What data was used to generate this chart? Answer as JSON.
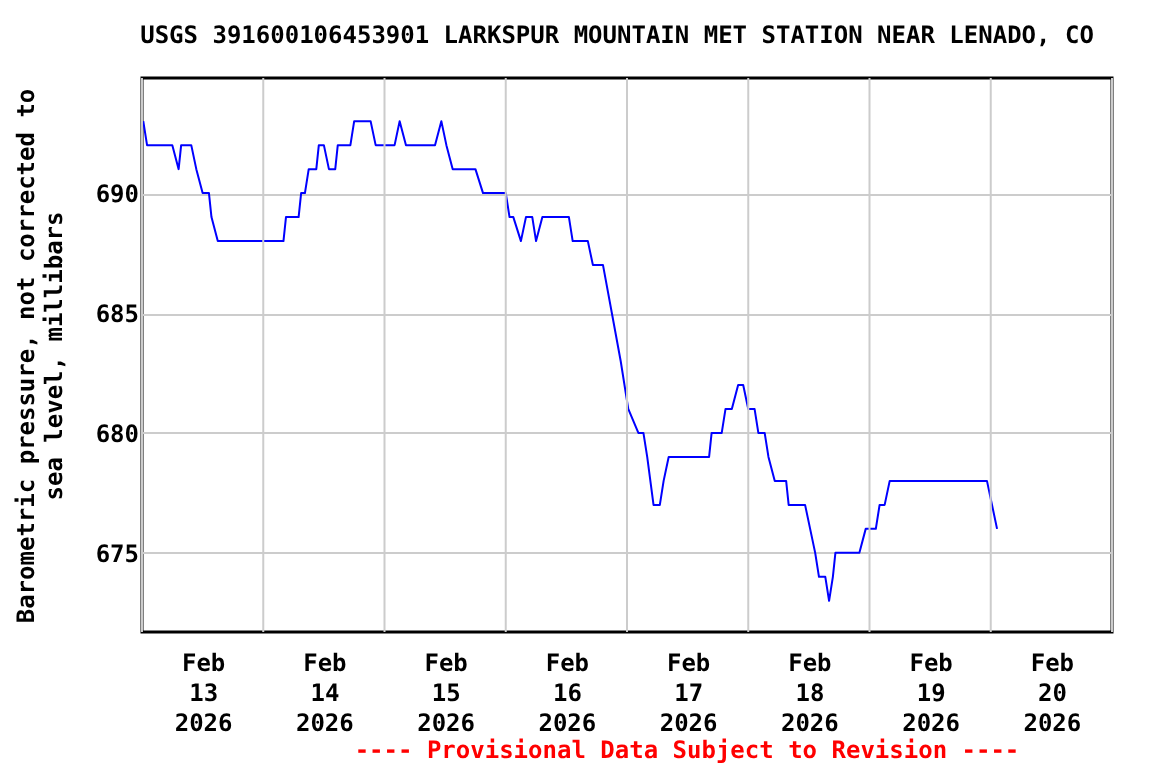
{
  "chart_data": {
    "type": "line",
    "title": "USGS 391600106453901 LARKSPUR MOUNTAIN MET STATION NEAR LENADO, CO",
    "ylabel": "Barometric pressure, not corrected to\nsea level, millibars",
    "annotations": [
      "---- Provisional Data Subject to Revision ----"
    ],
    "x": [
      "2026-02-13T00:15",
      "2026-02-13T01:00",
      "2026-02-13T06:00",
      "2026-02-13T07:15",
      "2026-02-13T07:45",
      "2026-02-13T09:45",
      "2026-02-13T10:45",
      "2026-02-13T12:00",
      "2026-02-13T13:15",
      "2026-02-13T13:45",
      "2026-02-13T15:00",
      "2026-02-14T04:00",
      "2026-02-14T04:30",
      "2026-02-14T07:00",
      "2026-02-14T07:30",
      "2026-02-14T08:15",
      "2026-02-14T09:00",
      "2026-02-14T10:30",
      "2026-02-14T11:00",
      "2026-02-14T12:00",
      "2026-02-14T13:00",
      "2026-02-14T14:15",
      "2026-02-14T14:45",
      "2026-02-14T17:15",
      "2026-02-14T18:00",
      "2026-02-14T21:15",
      "2026-02-14T22:15",
      "2026-02-15T02:00",
      "2026-02-15T03:00",
      "2026-02-15T04:15",
      "2026-02-15T10:00",
      "2026-02-15T11:15",
      "2026-02-15T12:15",
      "2026-02-15T13:30",
      "2026-02-15T18:00",
      "2026-02-15T19:30",
      "2026-02-16T00:00",
      "2026-02-16T00:45",
      "2026-02-16T01:30",
      "2026-02-16T03:00",
      "2026-02-16T04:00",
      "2026-02-16T05:15",
      "2026-02-16T06:00",
      "2026-02-16T07:15",
      "2026-02-16T12:30",
      "2026-02-16T13:15",
      "2026-02-16T16:15",
      "2026-02-16T17:15",
      "2026-02-16T19:15",
      "2026-02-16T21:00",
      "2026-02-16T22:45",
      "2026-02-17T00:15",
      "2026-02-17T02:15",
      "2026-02-17T03:15",
      "2026-02-17T04:00",
      "2026-02-17T05:15",
      "2026-02-17T06:30",
      "2026-02-17T07:15",
      "2026-02-17T08:15",
      "2026-02-17T16:15",
      "2026-02-17T16:45",
      "2026-02-17T18:45",
      "2026-02-17T19:30",
      "2026-02-17T20:45",
      "2026-02-17T22:00",
      "2026-02-17T23:00",
      "2026-02-18T00:00",
      "2026-02-18T01:15",
      "2026-02-18T02:00",
      "2026-02-18T03:15",
      "2026-02-18T04:00",
      "2026-02-18T05:15",
      "2026-02-18T07:30",
      "2026-02-18T08:00",
      "2026-02-18T11:15",
      "2026-02-18T12:15",
      "2026-02-18T13:15",
      "2026-02-18T14:00",
      "2026-02-18T15:15",
      "2026-02-18T16:00",
      "2026-02-18T16:45",
      "2026-02-18T17:15",
      "2026-02-18T22:00",
      "2026-02-18T23:15",
      "2026-02-19T01:15",
      "2026-02-19T02:00",
      "2026-02-19T03:00",
      "2026-02-19T04:00",
      "2026-02-19T23:15",
      "2026-02-20T00:15",
      "2026-02-20T01:15"
    ],
    "series": [
      {
        "color": "#0000ff",
        "values": [
          693,
          692,
          692,
          691,
          692,
          692,
          691,
          690,
          690,
          689,
          688,
          688,
          689,
          689,
          690,
          690,
          691,
          691,
          692,
          692,
          691,
          691,
          692,
          692,
          693,
          693,
          692,
          692,
          693,
          692,
          692,
          693,
          692,
          691,
          691,
          690,
          690,
          689,
          689,
          688,
          689,
          689,
          688,
          689,
          689,
          688,
          688,
          687,
          687,
          685,
          683,
          681,
          680,
          680,
          679,
          677,
          677,
          678,
          679,
          679,
          680,
          680,
          681,
          681,
          682,
          682,
          681,
          681,
          680,
          680,
          679,
          678,
          678,
          677,
          677,
          676,
          675,
          674,
          674,
          673,
          674,
          675,
          675,
          676,
          676,
          677,
          677,
          678,
          678,
          677,
          676
        ]
      }
    ],
    "xlim": [
      "2026-02-13T00:00",
      "2026-02-21T00:00"
    ],
    "xticks": [
      {
        "value": "2026-02-13T00:00",
        "label": null
      },
      {
        "value": "2026-02-13T12:00",
        "label": "Feb\n13\n2026"
      },
      {
        "value": "2026-02-14T00:00",
        "label": null
      },
      {
        "value": "2026-02-14T12:00",
        "label": "Feb\n14\n2026"
      },
      {
        "value": "2026-02-15T00:00",
        "label": null
      },
      {
        "value": "2026-02-15T12:00",
        "label": "Feb\n15\n2026"
      },
      {
        "value": "2026-02-16T00:00",
        "label": null
      },
      {
        "value": "2026-02-16T12:00",
        "label": "Feb\n16\n2026"
      },
      {
        "value": "2026-02-17T00:00",
        "label": null
      },
      {
        "value": "2026-02-17T12:00",
        "label": "Feb\n17\n2026"
      },
      {
        "value": "2026-02-18T00:00",
        "label": null
      },
      {
        "value": "2026-02-18T12:00",
        "label": "Feb\n18\n2026"
      },
      {
        "value": "2026-02-19T00:00",
        "label": null
      },
      {
        "value": "2026-02-19T12:00",
        "label": "Feb\n19\n2026"
      },
      {
        "value": "2026-02-20T00:00",
        "label": null
      },
      {
        "value": "2026-02-20T12:00",
        "label": "Feb\n20\n2026"
      },
      {
        "value": "2026-02-21T00:00",
        "label": null
      }
    ],
    "ylim": [
      671.7,
      694.8
    ],
    "yticks": [
      675,
      680,
      685,
      690
    ],
    "grid": true,
    "marker": "none",
    "line_style": "solid",
    "legend": false
  }
}
